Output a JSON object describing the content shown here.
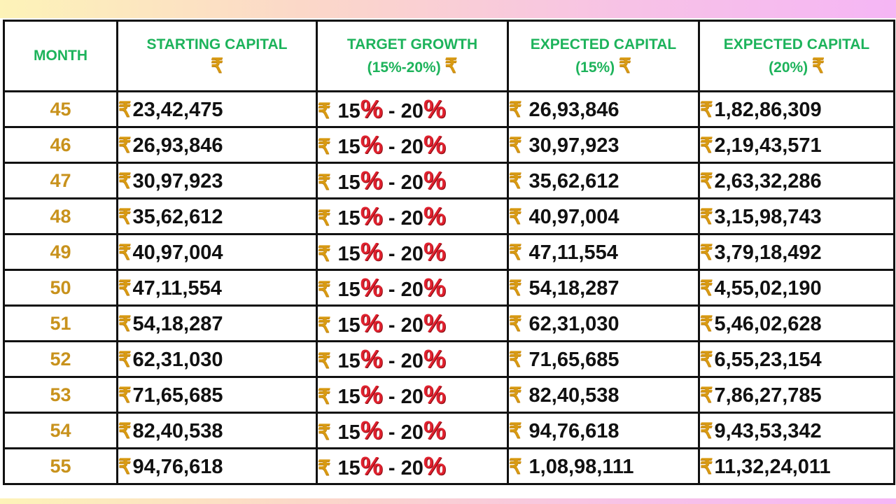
{
  "headers": {
    "month": "MONTH",
    "starting_capital": "STARTING CAPITAL",
    "target_growth": "TARGET GROWTH",
    "target_growth_range": "(15%-20%)",
    "expected_15": "EXPECTED CAPITAL",
    "expected_15_sub": "(15%)",
    "expected_20": "EXPECTED CAPITAL",
    "expected_20_sub": "(20%)",
    "currency_symbol": "₹"
  },
  "growth": {
    "low": "15",
    "high": "20",
    "percent": "%",
    "dash": "-"
  },
  "rows": [
    {
      "month": "45",
      "starting": "23,42,475",
      "exp15": "26,93,846",
      "exp20": "1,82,86,309"
    },
    {
      "month": "46",
      "starting": "26,93,846",
      "exp15": "30,97,923",
      "exp20": "2,19,43,571"
    },
    {
      "month": "47",
      "starting": "30,97,923",
      "exp15": "35,62,612",
      "exp20": "2,63,32,286"
    },
    {
      "month": "48",
      "starting": "35,62,612",
      "exp15": "40,97,004",
      "exp20": "3,15,98,743"
    },
    {
      "month": "49",
      "starting": "40,97,004",
      "exp15": "47,11,554",
      "exp20": "3,79,18,492"
    },
    {
      "month": "50",
      "starting": "47,11,554",
      "exp15": "54,18,287",
      "exp20": "4,55,02,190"
    },
    {
      "month": "51",
      "starting": "54,18,287",
      "exp15": "62,31,030",
      "exp20": "5,46,02,628"
    },
    {
      "month": "52",
      "starting": "62,31,030",
      "exp15": "71,65,685",
      "exp20": "6,55,23,154"
    },
    {
      "month": "53",
      "starting": "71,65,685",
      "exp15": "82,40,538",
      "exp20": "7,86,27,785"
    },
    {
      "month": "54",
      "starting": "82,40,538",
      "exp15": "94,76,618",
      "exp20": "9,43,53,342"
    },
    {
      "month": "55",
      "starting": "94,76,618",
      "exp15": "1,08,98,111",
      "exp20": "11,32,24,011"
    }
  ],
  "colors": {
    "header_text": "#1db35b",
    "month_text": "#c8921c",
    "rupee": "#d89a12",
    "percent": "#e0212e"
  }
}
